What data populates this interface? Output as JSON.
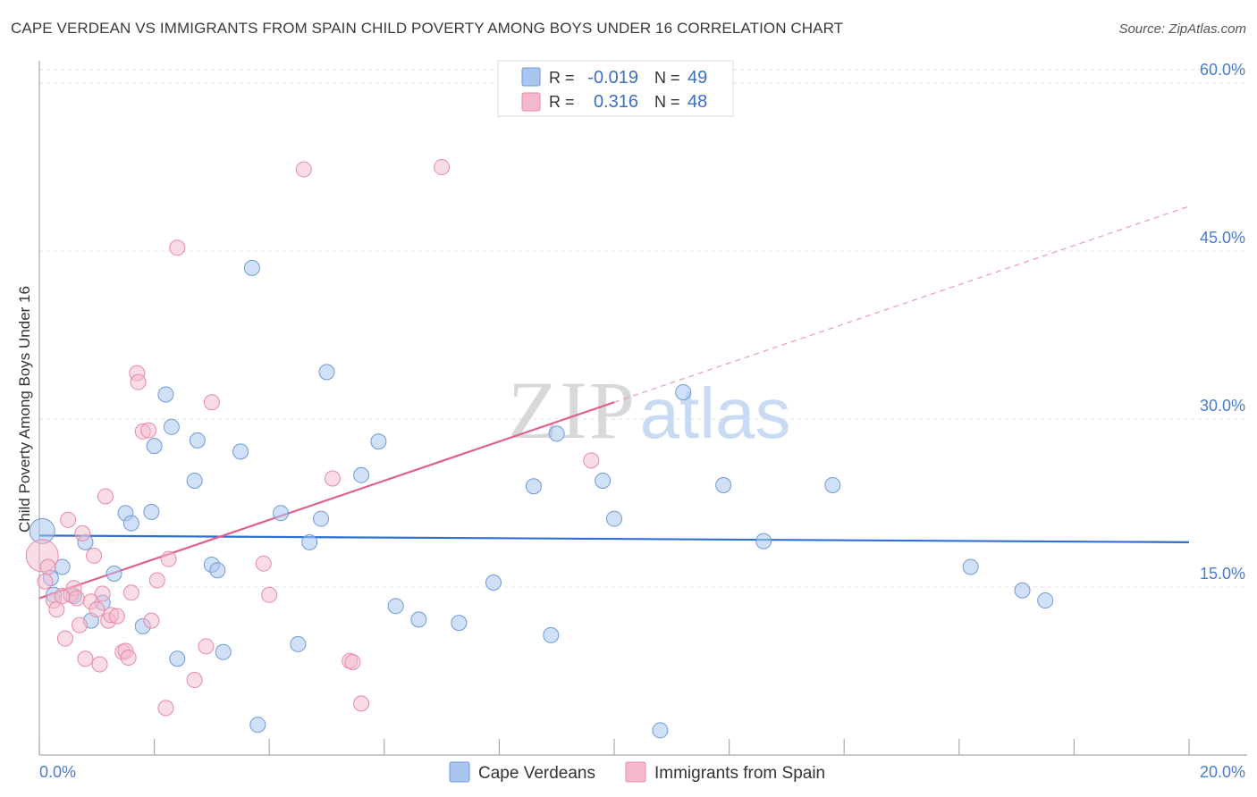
{
  "chart_data": {
    "type": "scatter",
    "title": "CAPE VERDEAN VS IMMIGRANTS FROM SPAIN CHILD POVERTY AMONG BOYS UNDER 16 CORRELATION CHART",
    "source": "Source: ZipAtlas.com",
    "ylabel": "Child Poverty Among Boys Under 16",
    "xlabel": "",
    "xlim": [
      0,
      20
    ],
    "ylim": [
      0,
      62
    ],
    "x_tick_labels": [
      "0.0%",
      "20.0%"
    ],
    "y_ticks": [
      15,
      30,
      45,
      60
    ],
    "y_tick_labels": [
      "15.0%",
      "30.0%",
      "45.0%",
      "60.0%"
    ],
    "watermark": "ZIPatlas",
    "legend": {
      "r_label": "R =",
      "n_label": "N =",
      "entries": [
        {
          "name": "Cape Verdeans",
          "r": "-0.019",
          "n": "49",
          "color": "#a9c6f0",
          "stroke": "#6f9ad8"
        },
        {
          "name": "Immigrants from Spain",
          "r": "0.316",
          "n": "48",
          "color": "#f6b9cc",
          "stroke": "#e68aa8"
        }
      ]
    },
    "series": [
      {
        "name": "Cape Verdeans",
        "color": "#a9c6f0",
        "stroke": "#6f9ad8",
        "trend": {
          "x": [
            0,
            20
          ],
          "y": [
            19.6,
            19.0
          ],
          "color": "#2f6fd1"
        },
        "points": [
          [
            0.05,
            20.0
          ],
          [
            0.2,
            15.8
          ],
          [
            0.4,
            16.8
          ],
          [
            0.6,
            14.2
          ],
          [
            0.8,
            19.0
          ],
          [
            0.9,
            12.0
          ],
          [
            1.1,
            13.6
          ],
          [
            1.3,
            16.2
          ],
          [
            1.5,
            21.6
          ],
          [
            1.6,
            20.7
          ],
          [
            1.8,
            11.5
          ],
          [
            1.95,
            21.7
          ],
          [
            2.0,
            27.6
          ],
          [
            2.2,
            32.2
          ],
          [
            2.3,
            29.3
          ],
          [
            2.4,
            8.6
          ],
          [
            2.7,
            24.5
          ],
          [
            2.75,
            28.1
          ],
          [
            3.0,
            17.0
          ],
          [
            3.1,
            16.5
          ],
          [
            3.2,
            9.2
          ],
          [
            3.5,
            27.1
          ],
          [
            3.7,
            43.5
          ],
          [
            3.8,
            2.7
          ],
          [
            4.2,
            21.6
          ],
          [
            4.5,
            9.9
          ],
          [
            4.7,
            19.0
          ],
          [
            4.9,
            21.1
          ],
          [
            5.0,
            34.2
          ],
          [
            5.6,
            25.0
          ],
          [
            5.9,
            28.0
          ],
          [
            6.2,
            13.3
          ],
          [
            6.6,
            12.1
          ],
          [
            7.3,
            11.8
          ],
          [
            7.9,
            15.4
          ],
          [
            8.6,
            24.0
          ],
          [
            8.9,
            10.7
          ],
          [
            9.0,
            28.7
          ],
          [
            9.8,
            24.5
          ],
          [
            10.0,
            21.1
          ],
          [
            10.8,
            2.2
          ],
          [
            11.2,
            32.4
          ],
          [
            11.9,
            24.1
          ],
          [
            12.6,
            19.1
          ],
          [
            13.8,
            24.1
          ],
          [
            16.2,
            16.8
          ],
          [
            17.1,
            14.7
          ],
          [
            17.5,
            13.8
          ],
          [
            0.25,
            14.3
          ]
        ]
      },
      {
        "name": "Immigrants from Spain",
        "color": "#f6b9cc",
        "stroke": "#e68aa8",
        "trend": {
          "x": [
            0,
            10.0
          ],
          "y": [
            14.0,
            31.5
          ],
          "color": "#e0608a",
          "extend_to_x": 20,
          "extend_y": 49.0
        },
        "points": [
          [
            0.05,
            17.8
          ],
          [
            0.15,
            16.8
          ],
          [
            0.25,
            13.8
          ],
          [
            0.3,
            13.0
          ],
          [
            0.4,
            14.2
          ],
          [
            0.45,
            10.4
          ],
          [
            0.5,
            21.0
          ],
          [
            0.55,
            14.3
          ],
          [
            0.6,
            14.9
          ],
          [
            0.7,
            11.6
          ],
          [
            0.75,
            19.8
          ],
          [
            0.8,
            8.6
          ],
          [
            0.9,
            13.7
          ],
          [
            0.95,
            17.8
          ],
          [
            1.0,
            13.0
          ],
          [
            1.05,
            8.1
          ],
          [
            1.1,
            14.4
          ],
          [
            1.15,
            23.1
          ],
          [
            1.2,
            12.0
          ],
          [
            1.25,
            12.5
          ],
          [
            1.35,
            12.4
          ],
          [
            1.45,
            9.2
          ],
          [
            1.5,
            9.3
          ],
          [
            1.55,
            8.7
          ],
          [
            1.6,
            14.5
          ],
          [
            1.7,
            34.1
          ],
          [
            1.72,
            33.3
          ],
          [
            1.8,
            28.9
          ],
          [
            1.9,
            29.0
          ],
          [
            1.95,
            12.0
          ],
          [
            2.05,
            15.6
          ],
          [
            2.2,
            4.2
          ],
          [
            2.25,
            17.5
          ],
          [
            2.4,
            45.3
          ],
          [
            2.7,
            6.7
          ],
          [
            2.9,
            9.7
          ],
          [
            3.0,
            31.5
          ],
          [
            3.9,
            17.1
          ],
          [
            4.0,
            14.3
          ],
          [
            4.6,
            52.3
          ],
          [
            5.1,
            24.7
          ],
          [
            5.4,
            8.4
          ],
          [
            5.45,
            8.3
          ],
          [
            5.6,
            4.6
          ],
          [
            7.0,
            52.5
          ],
          [
            9.6,
            26.3
          ],
          [
            0.1,
            15.5
          ],
          [
            0.65,
            14.0
          ]
        ]
      }
    ]
  }
}
